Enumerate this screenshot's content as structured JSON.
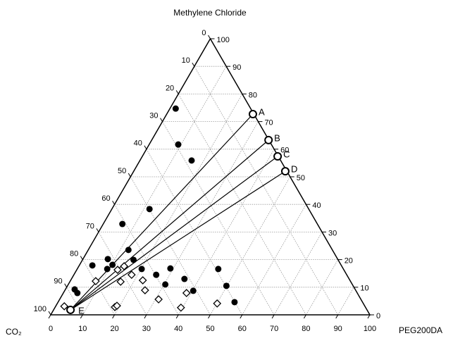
{
  "chart_data": {
    "type": "ternary",
    "title": "Methylene Chloride",
    "left_corner": "CO₂",
    "right_corner": "PEG200DA",
    "bottom_ticks": [
      0,
      10,
      20,
      30,
      40,
      50,
      60,
      70,
      80,
      90,
      100
    ],
    "left_ticks": [
      0,
      10,
      20,
      30,
      40,
      50,
      60,
      70,
      80,
      90,
      100
    ],
    "right_ticks": [
      0,
      10,
      20,
      30,
      40,
      50,
      60,
      70,
      80,
      90,
      100
    ],
    "grid": true,
    "series": [
      {
        "marker": "filled-circle",
        "color": "#000000",
        "x": [
          1.8,
          9.1,
          16.2,
          11.8,
          6.0,
          12.6,
          7.8,
          4.1,
          10.3,
          9.4,
          16.0,
          20.2,
          25.8,
          29.1,
          30.4,
          35.4,
          40.3,
          44.2,
          49.8,
          55.3,
          2.9,
          4.4
        ],
        "values": [
          74.7,
          61.7,
          55.9,
          38.3,
          32.9,
          23.5,
          20.2,
          17.9,
          18.1,
          16.6,
          19.9,
          16.6,
          14.5,
          16.8,
          11.0,
          13.0,
          8.7,
          16.6,
          10.5,
          4.6,
          9.2,
          7.9
        ]
      },
      {
        "marker": "open-diamond",
        "color": "#000000",
        "x": [
          8.0,
          12.8,
          14.2,
          18.1,
          15.9,
          22.6,
          25.1,
          31.0,
          38.6,
          39.5,
          18.7,
          19.1,
          50.1,
          2.7
        ],
        "values": [
          12.2,
          16.3,
          17.6,
          14.5,
          12.0,
          12.5,
          8.9,
          5.6,
          7.9,
          2.6,
          2.8,
          3.3,
          4.1,
          3.1
        ]
      }
    ],
    "tie_lines": {
      "labels": [
        "A",
        "B",
        "C",
        "D"
      ],
      "x": [
        27.0,
        36.6,
        42.4,
        47.5
      ],
      "values": [
        72.7,
        63.3,
        57.4,
        52.0
      ]
    },
    "tie_origin": {
      "label": "E",
      "x": 5.3,
      "value": 1.8
    }
  }
}
